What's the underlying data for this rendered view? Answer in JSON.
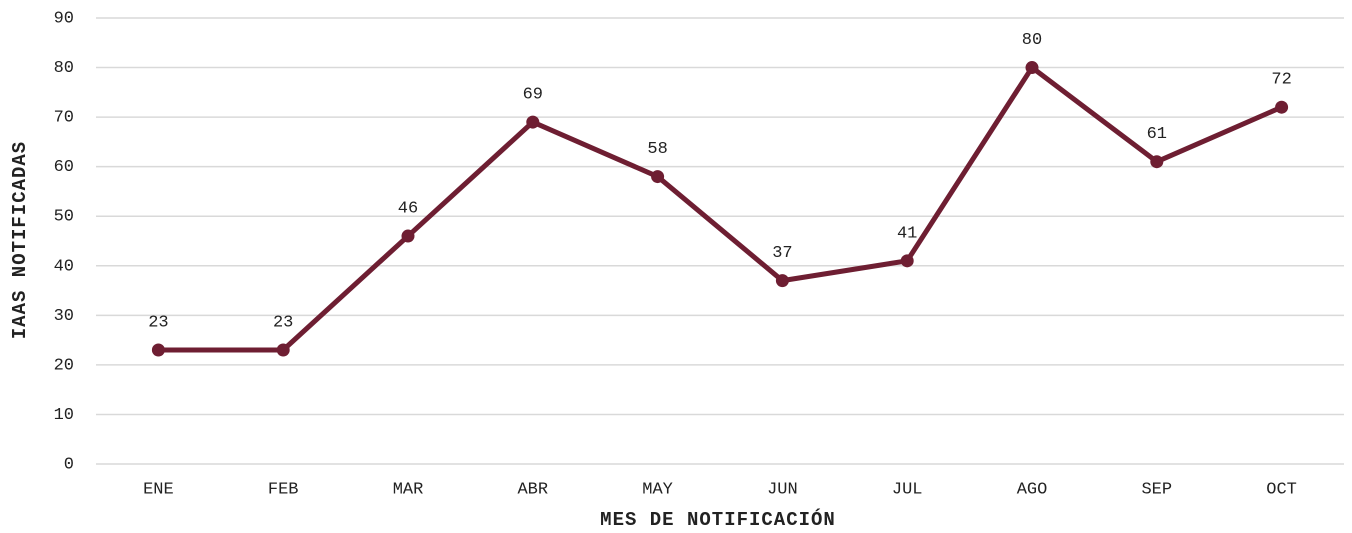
{
  "chart_data": {
    "type": "line",
    "x_label": "MES DE NOTIFICACIÓN",
    "y_label": "IAAS NOTIFICADAS",
    "categories": [
      "ENE",
      "FEB",
      "MAR",
      "ABR",
      "MAY",
      "JUN",
      "JUL",
      "AGO",
      "SEP",
      "OCT"
    ],
    "values": [
      23,
      23,
      46,
      69,
      58,
      37,
      41,
      80,
      61,
      72
    ],
    "color": "#6e1e32",
    "ylim": [
      0,
      90
    ],
    "yticks": [
      0,
      10,
      20,
      30,
      40,
      50,
      60,
      70,
      80,
      90
    ],
    "grid": true
  }
}
